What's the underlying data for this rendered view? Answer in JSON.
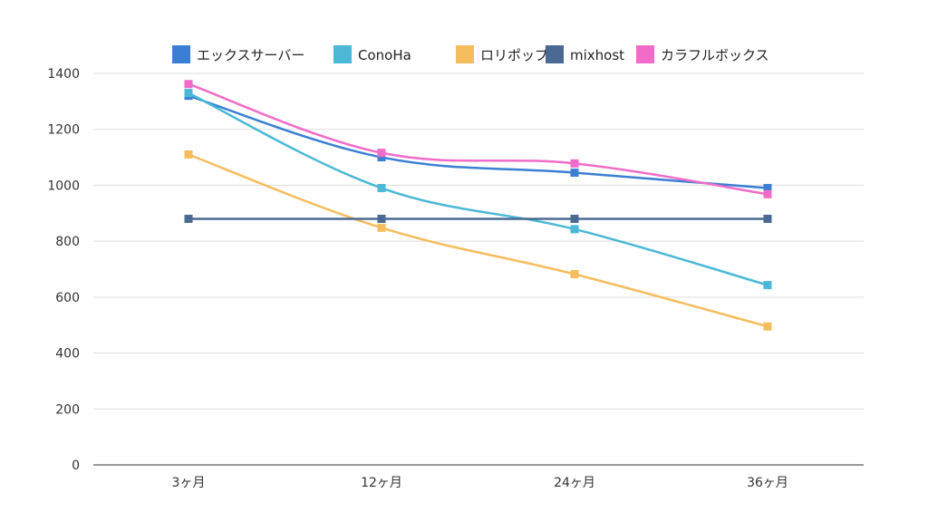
{
  "chart_data": {
    "type": "line",
    "title": "",
    "xlabel": "",
    "ylabel": "",
    "categories": [
      "3ヶ月",
      "12ヶ月",
      "24ヶ月",
      "36ヶ月"
    ],
    "ylim": [
      0,
      1400
    ],
    "yticks": [
      0,
      200,
      400,
      600,
      800,
      1000,
      1200,
      1400
    ],
    "grid": true,
    "legend_position": "top",
    "smooth": true,
    "series": [
      {
        "name": "エックスサーバー",
        "color": "#3a7fd4",
        "values": [
          1320,
          1100,
          1045,
          990
        ]
      },
      {
        "name": "ConoHa",
        "color": "#4ab8d6",
        "values": [
          1330,
          990,
          843,
          643
        ]
      },
      {
        "name": "ロリポップ",
        "color": "#f6bd5e",
        "values": [
          1110,
          848,
          682,
          495
        ]
      },
      {
        "name": "mixhost",
        "color": "#4b6a93",
        "values": [
          880,
          880,
          880,
          880
        ]
      },
      {
        "name": "カラフルボックス",
        "color": "#f06cc8",
        "values": [
          1362,
          1116,
          1078,
          968
        ]
      }
    ]
  }
}
